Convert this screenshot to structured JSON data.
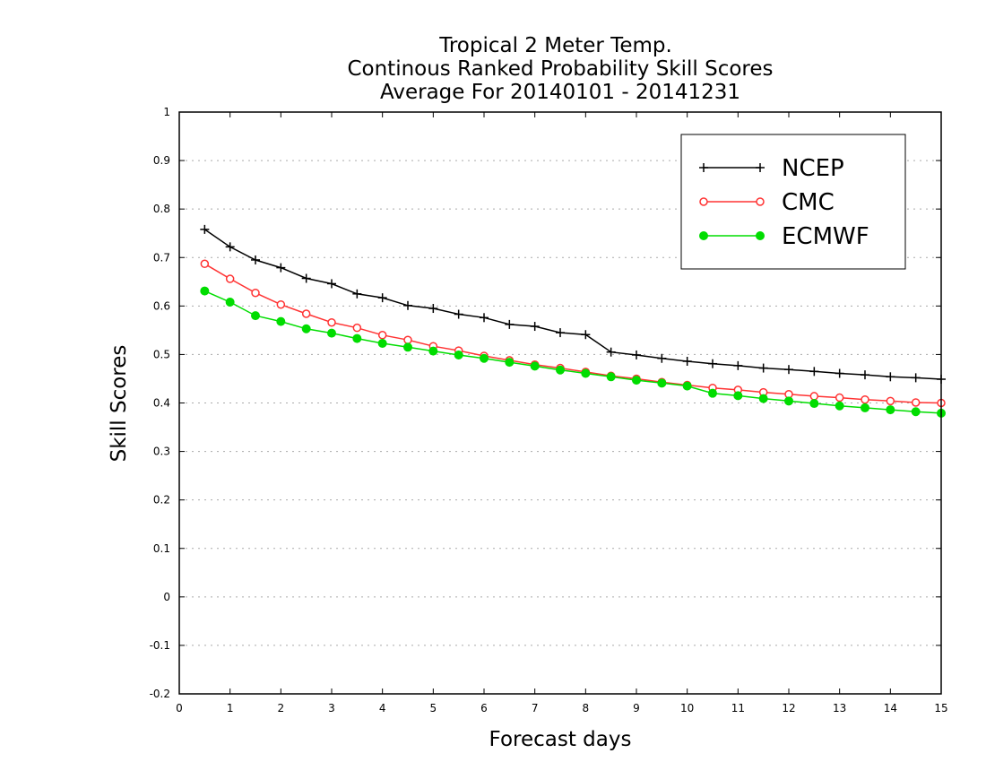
{
  "chart_data": {
    "type": "line",
    "title": [
      "Tropical 2 Meter Temp.",
      "Continous Ranked Probability Skill Scores",
      "Average For 20140101 - 20141231"
    ],
    "xlabel": "Forecast days",
    "ylabel": "Skill Scores",
    "xlim": [
      0,
      15
    ],
    "ylim": [
      -0.2,
      1
    ],
    "xticks": [
      "0",
      "1",
      "2",
      "3",
      "4",
      "5",
      "6",
      "7",
      "8",
      "9",
      "10",
      "11",
      "12",
      "13",
      "14",
      "15"
    ],
    "yticks": [
      "-0.2",
      "-0.1",
      "0",
      "0.1",
      "0.2",
      "0.3",
      "0.4",
      "0.5",
      "0.6",
      "0.7",
      "0.8",
      "0.9",
      "1"
    ],
    "grid": "horizontal dotted",
    "legend_position": "top-right",
    "x": [
      0.5,
      1,
      1.5,
      2,
      2.5,
      3,
      3.5,
      4,
      4.5,
      5,
      5.5,
      6,
      6.5,
      7,
      7.5,
      8,
      8.5,
      9,
      9.5,
      10,
      10.5,
      11,
      11.5,
      12,
      12.5,
      13,
      13.5,
      14,
      14.5,
      15
    ],
    "series": [
      {
        "name": "NCEP",
        "color": "#000000",
        "marker": "plus",
        "values": [
          0.758,
          0.722,
          0.695,
          0.679,
          0.657,
          0.646,
          0.625,
          0.617,
          0.601,
          0.595,
          0.583,
          0.576,
          0.562,
          0.558,
          0.545,
          0.541,
          0.505,
          0.499,
          0.492,
          0.486,
          0.481,
          0.477,
          0.472,
          0.469,
          0.465,
          0.461,
          0.458,
          0.454,
          0.452,
          0.449
        ]
      },
      {
        "name": "CMC",
        "color": "#ff3333",
        "marker": "open-circle",
        "values": [
          0.687,
          0.656,
          0.627,
          0.603,
          0.584,
          0.566,
          0.555,
          0.54,
          0.53,
          0.517,
          0.508,
          0.497,
          0.488,
          0.479,
          0.472,
          0.464,
          0.456,
          0.45,
          0.443,
          0.437,
          0.431,
          0.427,
          0.422,
          0.418,
          0.414,
          0.411,
          0.407,
          0.404,
          0.401,
          0.4
        ]
      },
      {
        "name": "ECMWF",
        "color": "#00dd00",
        "marker": "filled-circle",
        "values": [
          0.631,
          0.608,
          0.58,
          0.568,
          0.553,
          0.544,
          0.533,
          0.523,
          0.515,
          0.507,
          0.499,
          0.492,
          0.484,
          0.476,
          0.468,
          0.461,
          0.454,
          0.447,
          0.441,
          0.435,
          0.42,
          0.415,
          0.409,
          0.404,
          0.399,
          0.394,
          0.39,
          0.386,
          0.382,
          0.379
        ]
      }
    ]
  }
}
